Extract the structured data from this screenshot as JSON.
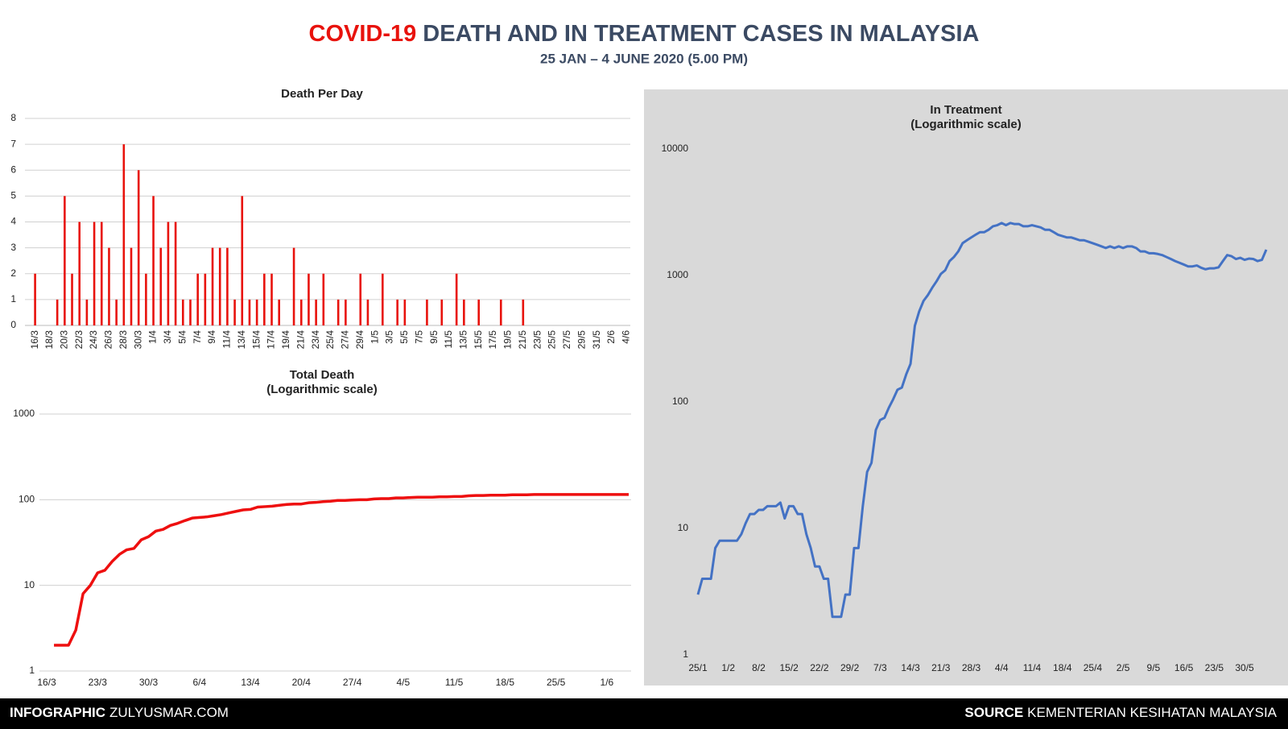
{
  "header": {
    "title_highlight": "COVID-19",
    "title_rest": "DEATH AND IN TREATMENT CASES IN MALAYSIA",
    "subtitle": "25 JAN – 4 JUNE 2020 (5.00 PM)"
  },
  "footer": {
    "left_label": "INFOGRAPHIC",
    "left_text": "ZULYUSMAR.COM",
    "right_label": "SOURCE",
    "right_text": "KEMENTERIAN KESIHATAN MALAYSIA"
  },
  "chart_data": [
    {
      "type": "bar",
      "title": "Death Per Day",
      "color": "#e8120c",
      "ylim": [
        0,
        8
      ],
      "yticks": [
        0,
        1,
        2,
        3,
        4,
        5,
        6,
        7,
        8
      ],
      "grid": true,
      "log_scale": false,
      "categories": [
        "16/3",
        null,
        "18/3",
        null,
        "20/3",
        null,
        "22/3",
        null,
        "24/3",
        null,
        "26/3",
        null,
        "28/3",
        null,
        "30/3",
        null,
        "1/4",
        null,
        "3/4",
        null,
        "5/4",
        null,
        "7/4",
        null,
        "9/4",
        null,
        "11/4",
        null,
        "13/4",
        null,
        "15/4",
        null,
        "17/4",
        null,
        "19/4",
        null,
        "21/4",
        null,
        "23/4",
        null,
        "25/4",
        null,
        "27/4",
        null,
        "29/4",
        null,
        "1/5",
        null,
        "3/5",
        null,
        "5/5",
        null,
        "7/5",
        null,
        "9/5",
        null,
        "11/5",
        null,
        "13/5",
        null,
        "15/5",
        null,
        "17/5",
        null,
        "19/5",
        null,
        "21/5",
        null,
        "23/5",
        null,
        "25/5",
        null,
        "27/5",
        null,
        "29/5",
        null,
        "31/5",
        null,
        "2/6",
        null,
        "4/6"
      ],
      "values": [
        2,
        0,
        0,
        1,
        5,
        2,
        4,
        1,
        4,
        4,
        3,
        1,
        7,
        3,
        6,
        2,
        5,
        3,
        4,
        4,
        1,
        1,
        2,
        2,
        3,
        3,
        3,
        1,
        5,
        1,
        1,
        2,
        2,
        1,
        0,
        3,
        1,
        2,
        1,
        2,
        0,
        1,
        1,
        0,
        2,
        1,
        0,
        2,
        0,
        1,
        1,
        0,
        0,
        1,
        0,
        1,
        0,
        2,
        1,
        0,
        1,
        0,
        0,
        1,
        0,
        0,
        1,
        0,
        0,
        0,
        0,
        0,
        0,
        0,
        0,
        0,
        0,
        0,
        0,
        0,
        0
      ]
    },
    {
      "type": "line",
      "title": "Total Death",
      "subtitle": "(Logarithmic scale)",
      "color": "#ee0f0f",
      "ylim": [
        1,
        1000
      ],
      "yticks": [
        1,
        10,
        100,
        1000
      ],
      "grid": true,
      "log_scale": true,
      "categories": [
        "16/3",
        null,
        null,
        null,
        null,
        null,
        null,
        "23/3",
        null,
        null,
        null,
        null,
        null,
        null,
        "30/3",
        null,
        null,
        null,
        null,
        null,
        null,
        "6/4",
        null,
        null,
        null,
        null,
        null,
        null,
        "13/4",
        null,
        null,
        null,
        null,
        null,
        null,
        "20/4",
        null,
        null,
        null,
        null,
        null,
        null,
        "27/4",
        null,
        null,
        null,
        null,
        null,
        null,
        "4/5",
        null,
        null,
        null,
        null,
        null,
        null,
        "11/5",
        null,
        null,
        null,
        null,
        null,
        null,
        "18/5",
        null,
        null,
        null,
        null,
        null,
        null,
        "25/5",
        null,
        null,
        null,
        null,
        null,
        null,
        "1/6",
        null,
        null,
        null
      ],
      "values": [
        null,
        2,
        2,
        2,
        3,
        8,
        10,
        14,
        15,
        19,
        23,
        26,
        27,
        34,
        37,
        43,
        45,
        50,
        53,
        57,
        61,
        62,
        63,
        65,
        67,
        70,
        73,
        76,
        77,
        82,
        83,
        84,
        86,
        88,
        89,
        89,
        92,
        93,
        95,
        96,
        98,
        98,
        99,
        100,
        100,
        102,
        103,
        103,
        105,
        105,
        106,
        107,
        107,
        107,
        108,
        108,
        109,
        109,
        111,
        112,
        112,
        113,
        113,
        113,
        114,
        114,
        114,
        115,
        115,
        115,
        115,
        115,
        115,
        115,
        115,
        115,
        115,
        115,
        115,
        115,
        115
      ]
    },
    {
      "type": "line",
      "title": "In Treatment",
      "subtitle": "(Logarithmic scale)",
      "color": "#4472c4",
      "ylim": [
        1,
        10000
      ],
      "yticks": [
        1,
        10,
        100,
        1000,
        10000
      ],
      "grid": false,
      "log_scale": true,
      "categories": [
        "25/1",
        null,
        null,
        null,
        null,
        null,
        null,
        "1/2",
        null,
        null,
        null,
        null,
        null,
        null,
        "8/2",
        null,
        null,
        null,
        null,
        null,
        null,
        "15/2",
        null,
        null,
        null,
        null,
        null,
        null,
        "22/2",
        null,
        null,
        null,
        null,
        null,
        null,
        "29/2",
        null,
        null,
        null,
        null,
        null,
        null,
        "7/3",
        null,
        null,
        null,
        null,
        null,
        null,
        "14/3",
        null,
        null,
        null,
        null,
        null,
        null,
        "21/3",
        null,
        null,
        null,
        null,
        null,
        null,
        "28/3",
        null,
        null,
        null,
        null,
        null,
        null,
        "4/4",
        null,
        null,
        null,
        null,
        null,
        null,
        "11/4",
        null,
        null,
        null,
        null,
        null,
        null,
        "18/4",
        null,
        null,
        null,
        null,
        null,
        null,
        "25/4",
        null,
        null,
        null,
        null,
        null,
        null,
        "2/5",
        null,
        null,
        null,
        null,
        null,
        null,
        "9/5",
        null,
        null,
        null,
        null,
        null,
        null,
        "16/5",
        null,
        null,
        null,
        null,
        null,
        null,
        "23/5",
        null,
        null,
        null,
        null,
        null,
        null,
        "30/5",
        null,
        null,
        null,
        null,
        null
      ],
      "values": [
        3,
        4,
        4,
        4,
        7,
        8,
        8,
        8,
        8,
        8,
        9,
        11,
        13,
        13,
        14,
        14,
        15,
        15,
        15,
        16,
        12,
        15,
        15,
        13,
        13,
        9,
        7,
        5,
        5,
        4,
        4,
        2,
        2,
        2,
        3,
        3,
        7,
        7,
        15,
        28,
        33,
        60,
        72,
        75,
        90,
        105,
        125,
        130,
        165,
        200,
        400,
        520,
        630,
        700,
        800,
        900,
        1030,
        1100,
        1300,
        1400,
        1550,
        1800,
        1900,
        2000,
        2100,
        2200,
        2200,
        2300,
        2450,
        2500,
        2600,
        2500,
        2600,
        2550,
        2550,
        2450,
        2450,
        2500,
        2450,
        2400,
        2300,
        2300,
        2200,
        2100,
        2050,
        2000,
        2000,
        1950,
        1900,
        1900,
        1850,
        1800,
        1750,
        1700,
        1650,
        1700,
        1650,
        1700,
        1650,
        1700,
        1700,
        1650,
        1550,
        1550,
        1500,
        1500,
        1480,
        1450,
        1400,
        1350,
        1300,
        1260,
        1220,
        1180,
        1180,
        1200,
        1150,
        1120,
        1140,
        1140,
        1160,
        1300,
        1450,
        1420,
        1350,
        1380,
        1330,
        1360,
        1350,
        1300,
        1330,
        1600
      ]
    }
  ]
}
